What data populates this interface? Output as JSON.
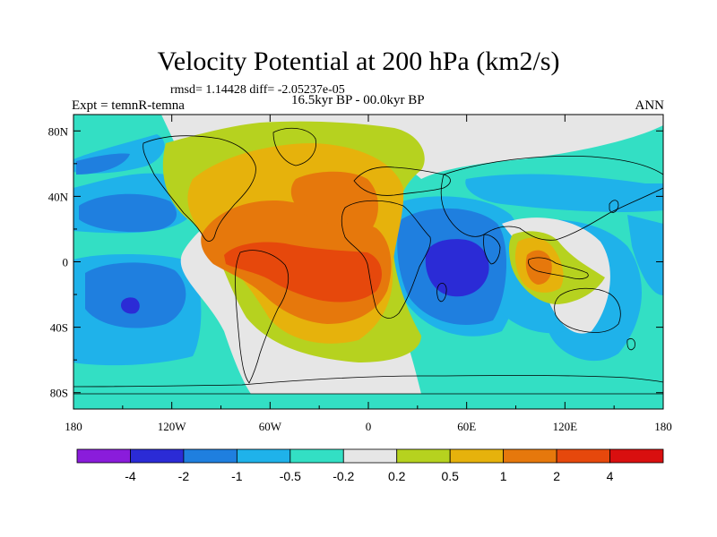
{
  "title": "Velocity Potential at 200 hPa (km2/s)",
  "rmsd_line": "rmsd= 1.14428 diff= -2.05237e-05",
  "experiment": "Expt = temnR-temna",
  "period": "16.5kyr BP - 00.0kyr BP",
  "season": "ANN",
  "chart_data": {
    "type": "heatmap",
    "title": "Velocity Potential at 200 hPa (km2/s)",
    "xlabel": "",
    "ylabel": "",
    "xlim": [
      -180,
      180
    ],
    "ylim": [
      -90,
      90
    ],
    "x_ticks": [
      "180",
      "120W",
      "60W",
      "0",
      "60E",
      "120E",
      "180"
    ],
    "y_ticks": [
      "80N",
      "40N",
      "0",
      "40S",
      "80S"
    ],
    "colorbar": {
      "labels": [
        "-4",
        "-2",
        "-1",
        "-0.5",
        "-0.2",
        "0.2",
        "0.5",
        "1",
        "2",
        "4"
      ],
      "colors": [
        "#8a1cdb",
        "#2b2bd6",
        "#1f7fdf",
        "#1fb2ea",
        "#33dfc4",
        "#e6e6e6",
        "#b6d21f",
        "#e6b20c",
        "#e6780c",
        "#e6480c",
        "#d90f0f"
      ]
    },
    "features": [
      {
        "name": "Atlantic / Africa positive maximum",
        "lon": -20,
        "lat": 5,
        "value": 4
      },
      {
        "name": "Indian Ocean negative minimum",
        "lon": 55,
        "lat": 5,
        "value": -4
      },
      {
        "name": "South Pacific negative minimum",
        "lon": -143,
        "lat": -25,
        "value": -4
      },
      {
        "name": "Maritime Continent positive maximum",
        "lon": 108,
        "lat": -5,
        "value": 2
      }
    ]
  }
}
